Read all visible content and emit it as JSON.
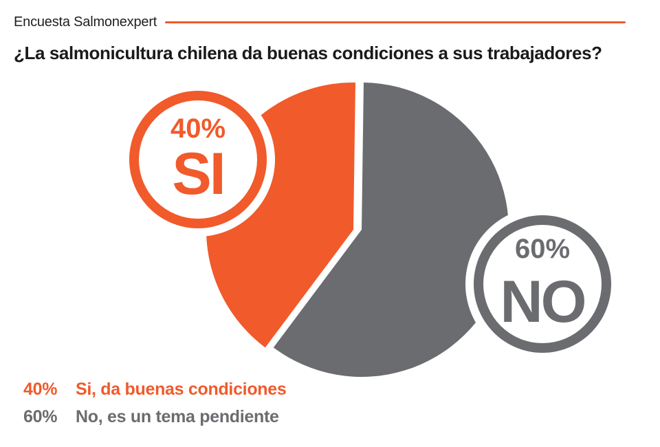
{
  "brand": "Encuesta Salmonexpert",
  "title": "¿La salmonicultura chilena da buenas condiciones a sus trabajadores?",
  "colors": {
    "si": "#f15a2b",
    "no": "#6b6c70",
    "si_dark": "#b8431f",
    "no_dark": "#4a4b4e"
  },
  "chart_data": {
    "type": "pie",
    "title": "¿La salmonicultura chilena da buenas condiciones a sus trabajadores?",
    "slices": [
      {
        "key": "si",
        "badge_label": "SI",
        "percent_label": "40%",
        "value": 40,
        "legend": "Si, da buenas condiciones"
      },
      {
        "key": "no",
        "badge_label": "NO",
        "percent_label": "60%",
        "value": 60,
        "legend": "No, es un tema pendiente"
      }
    ]
  }
}
